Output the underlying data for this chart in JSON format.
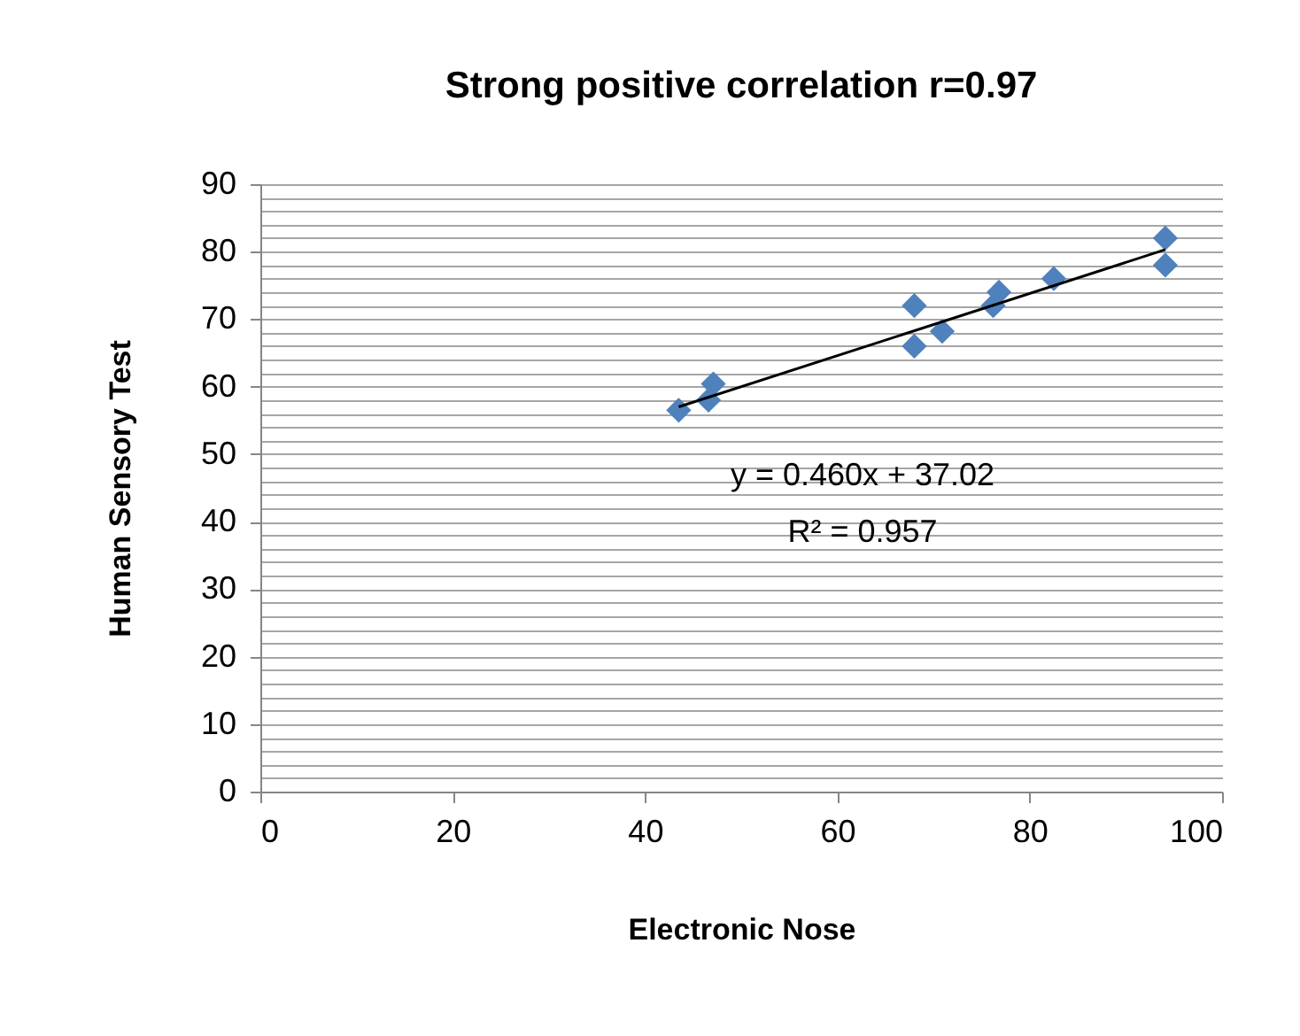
{
  "chart_data": {
    "type": "scatter",
    "title": "Strong positive correlation  r=0.97",
    "xlabel": "Electronic  Nose",
    "ylabel": "Human  Sensory  Test",
    "xlim": [
      0,
      100
    ],
    "xticks": [
      0,
      20,
      40,
      60,
      80,
      100
    ],
    "ylim": [
      0,
      90
    ],
    "yticks": [
      0,
      {
        "value": 2,
        "label": null
      },
      {
        "value": 4,
        "label": null
      },
      {
        "value": 6,
        "label": null
      },
      {
        "value": 8,
        "label": null
      },
      10,
      {
        "value": 12,
        "label": null
      },
      {
        "value": 14,
        "label": null
      },
      {
        "value": 16,
        "label": null
      },
      {
        "value": 18,
        "label": null
      },
      20,
      {
        "value": 22,
        "label": null
      },
      {
        "value": 24,
        "label": null
      },
      {
        "value": 26,
        "label": null
      },
      {
        "value": 28,
        "label": null
      },
      30,
      {
        "value": 32,
        "label": null
      },
      {
        "value": 34,
        "label": null
      },
      {
        "value": 36,
        "label": null
      },
      {
        "value": 38,
        "label": null
      },
      40,
      {
        "value": 42,
        "label": null
      },
      {
        "value": 44,
        "label": null
      },
      {
        "value": 46,
        "label": null
      },
      {
        "value": 48,
        "label": null
      },
      50,
      {
        "value": 52,
        "label": null
      },
      {
        "value": 54,
        "label": null
      },
      {
        "value": 56,
        "label": null
      },
      {
        "value": 58,
        "label": null
      },
      60,
      {
        "value": 62,
        "label": null
      },
      {
        "value": 64,
        "label": null
      },
      {
        "value": 66,
        "label": null
      },
      {
        "value": 68,
        "label": null
      },
      70,
      {
        "value": 72,
        "label": null
      },
      {
        "value": 74,
        "label": null
      },
      {
        "value": 76,
        "label": null
      },
      {
        "value": 78,
        "label": null
      },
      80,
      {
        "value": 82,
        "label": null
      },
      {
        "value": 84,
        "label": null
      },
      {
        "value": 86,
        "label": null
      },
      {
        "value": 88,
        "label": null
      },
      90
    ],
    "grid": "y",
    "series": [
      {
        "marker": "diamond",
        "color": "#4f81bd",
        "x": [
          43.5,
          46.6,
          47.1,
          68,
          68,
          70.9,
          76.2,
          76.8,
          82.5,
          94.1,
          94.1
        ],
        "values": [
          56.5,
          58,
          60.4,
          72,
          66,
          68.2,
          72,
          74,
          76,
          82,
          78
        ]
      },
      {
        "type": "line",
        "marker": "none",
        "color": "#000000",
        "x": [
          43.5,
          94.1
        ],
        "values": [
          57.0,
          80.3
        ]
      }
    ],
    "annotations": [
      "y = 0.460x + 37.02",
      "R² = 0.957"
    ]
  }
}
